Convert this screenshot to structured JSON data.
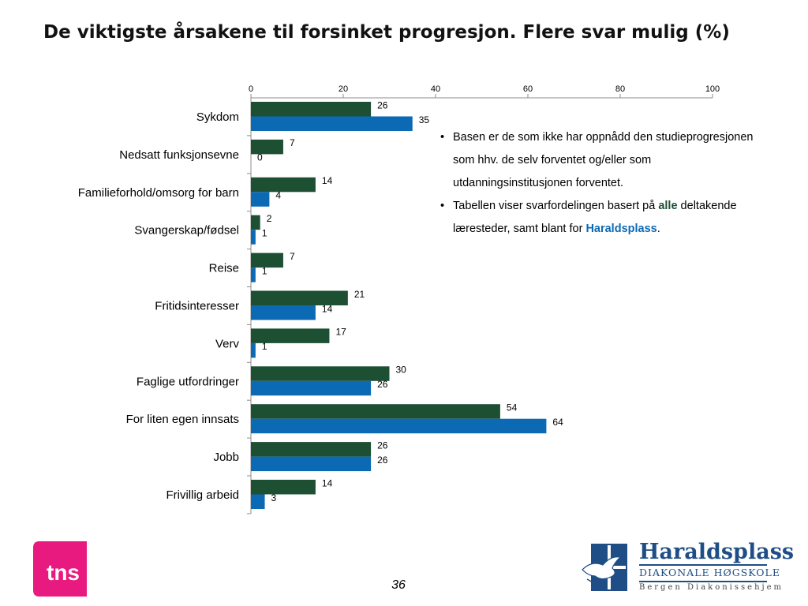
{
  "slide": {
    "title": "De viktigste årsakene til forsinket progresjon. Flere svar mulig (%)",
    "page_number": "36",
    "notes": {
      "bullet1": "Basen er de som ikke har oppnådd den studieprogresjonen som hhv. de selv forventet og/eller som utdanningsinstitusjonen forventet.",
      "bullet2_pre": "Tabellen viser svarfordelingen basert på ",
      "bullet2_all": "alle",
      "bullet2_mid": " deltakende læresteder, samt blant for ",
      "bullet2_hp": "Haraldsplass",
      "bullet2_end": "."
    },
    "logos": {
      "tns": "tns",
      "hp_name": "Haraldsplass",
      "hp_sub": "DIAKONALE HØGSKOLE",
      "hp_place": "Bergen Diakonissehjem"
    }
  },
  "colors": {
    "series_all": "#1d4f33",
    "series_hp": "#0c6ab5",
    "tns_pink": "#e8197f",
    "hp_blue": "#1e4e85"
  },
  "chart_data": {
    "type": "bar",
    "orientation": "horizontal",
    "categories": [
      "Sykdom",
      "Nedsatt funksjonsevne",
      "Familieforhold/omsorg for barn",
      "Svangerskap/fødsel",
      "Reise",
      "Fritidsinteresser",
      "Verv",
      "Faglige utfordringer",
      "For liten egen innsats",
      "Jobb",
      "Frivillig arbeid"
    ],
    "series": [
      {
        "values": [
          26,
          7,
          14,
          2,
          7,
          21,
          17,
          30,
          54,
          26,
          14
        ]
      },
      {
        "values": [
          35,
          0,
          4,
          1,
          1,
          14,
          1,
          26,
          64,
          26,
          3
        ]
      }
    ],
    "xlim": [
      0,
      100
    ],
    "xticks": [
      0,
      20,
      40,
      60,
      80,
      100
    ],
    "axis_position": "top",
    "grid": false,
    "legend": "none"
  }
}
